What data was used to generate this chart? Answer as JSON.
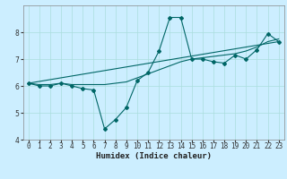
{
  "xlabel": "Humidex (Indice chaleur)",
  "bg_color": "#cceeff",
  "line_color": "#006666",
  "xlim": [
    -0.5,
    23.5
  ],
  "ylim": [
    4,
    9
  ],
  "xticks": [
    0,
    1,
    2,
    3,
    4,
    5,
    6,
    7,
    8,
    9,
    10,
    11,
    12,
    13,
    14,
    15,
    16,
    17,
    18,
    19,
    20,
    21,
    22,
    23
  ],
  "yticks": [
    4,
    5,
    6,
    7,
    8
  ],
  "line1_x": [
    0,
    1,
    2,
    3,
    4,
    5,
    6,
    7,
    8,
    9,
    10,
    11,
    12,
    13,
    14,
    15,
    16,
    17,
    18,
    19,
    20,
    21,
    22,
    23
  ],
  "line1_y": [
    6.1,
    6.0,
    6.0,
    6.1,
    6.0,
    5.9,
    5.85,
    4.4,
    4.75,
    5.2,
    6.2,
    6.5,
    7.3,
    8.55,
    8.55,
    7.0,
    7.0,
    6.9,
    6.85,
    7.15,
    7.0,
    7.35,
    7.95,
    7.65
  ],
  "line2_x": [
    0,
    1,
    2,
    3,
    4,
    5,
    6,
    7,
    8,
    9,
    10,
    11,
    12,
    13,
    14,
    15,
    16,
    17,
    18,
    19,
    20,
    21,
    22,
    23
  ],
  "line2_y": [
    6.1,
    6.05,
    6.05,
    6.1,
    6.05,
    6.05,
    6.05,
    6.05,
    6.1,
    6.15,
    6.3,
    6.45,
    6.6,
    6.75,
    6.9,
    7.0,
    7.05,
    7.1,
    7.15,
    7.2,
    7.3,
    7.45,
    7.65,
    7.75
  ],
  "line3_x": [
    0,
    23
  ],
  "line3_y": [
    6.1,
    7.65
  ],
  "grid_color": "#aadddd",
  "tick_fontsize": 5.5,
  "xlabel_fontsize": 6.5
}
